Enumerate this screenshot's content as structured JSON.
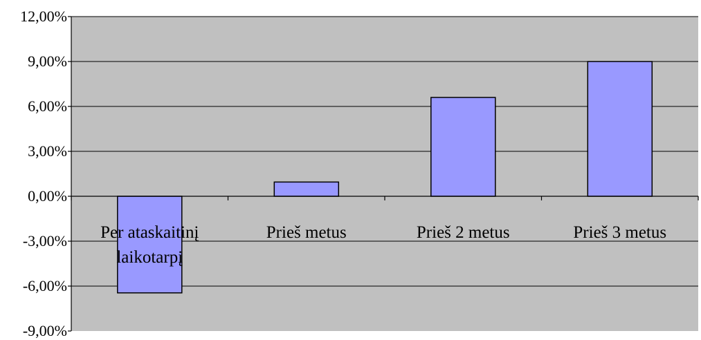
{
  "chart_data": {
    "type": "bar",
    "categories": [
      [
        "Per ataskaitinį",
        "laikotarpį"
      ],
      [
        "Prieš metus"
      ],
      [
        "Prieš  2 metus"
      ],
      [
        "Prieš 3 metus"
      ]
    ],
    "values": [
      -6.45,
      0.95,
      6.6,
      9.0
    ],
    "ylim": [
      -9,
      12
    ],
    "yticks": [
      12,
      9,
      6,
      3,
      0,
      -3,
      -6,
      -9
    ],
    "ytick_labels": [
      "12,00%",
      "9,00%",
      "6,00%",
      "3,00%",
      "0,00%",
      "-3,00%",
      "-6,00%",
      "-9,00%"
    ],
    "grid": true,
    "legend": "none",
    "colors": {
      "plot_background": "#c0c0c0",
      "bar_fill": "#9999ff",
      "bar_stroke": "#000000",
      "gridline": "#000000",
      "axis": "#000000"
    }
  }
}
